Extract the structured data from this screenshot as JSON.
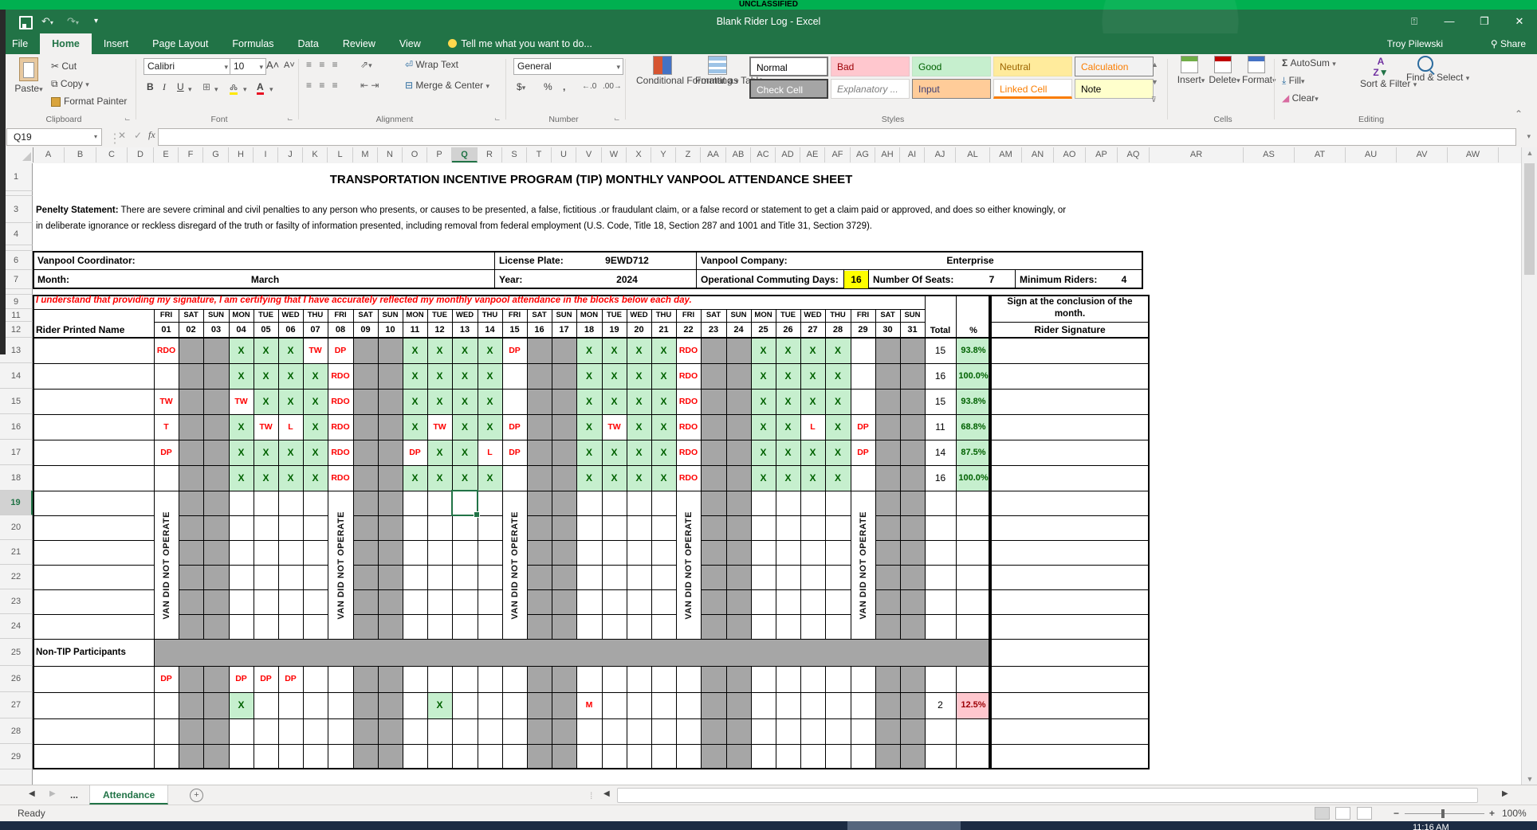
{
  "banner": {
    "text": "UNCLASSIFIED"
  },
  "title_bar": {
    "title": "Blank Rider Log - Excel",
    "user": "Troy Pilewski",
    "share_label": "Share"
  },
  "ribbon": {
    "tabs": [
      {
        "label": "File",
        "active": false
      },
      {
        "label": "Home",
        "active": true
      },
      {
        "label": "Insert",
        "active": false
      },
      {
        "label": "Page Layout",
        "active": false
      },
      {
        "label": "Formulas",
        "active": false
      },
      {
        "label": "Data",
        "active": false
      },
      {
        "label": "Review",
        "active": false
      },
      {
        "label": "View",
        "active": false
      }
    ],
    "tell_me": "Tell me what you want to do...",
    "groups": {
      "clipboard": {
        "label": "Clipboard",
        "paste": "Paste",
        "cut": "Cut",
        "copy": "Copy",
        "format_painter": "Format Painter"
      },
      "font": {
        "label": "Font",
        "family": "Calibri",
        "size": "10"
      },
      "alignment": {
        "label": "Alignment",
        "wrap_text": "Wrap Text",
        "merge_center": "Merge & Center"
      },
      "number": {
        "label": "Number",
        "format": "General"
      },
      "styles": {
        "label": "Styles",
        "conditional": "Conditional Formatting",
        "format_table": "Format as Table",
        "gallery": [
          {
            "label": "Normal",
            "fg": "#000000",
            "bg": "#ffffff",
            "border": "#7a7a7a",
            "italic": false
          },
          {
            "label": "Bad",
            "fg": "#9c0006",
            "bg": "#ffc7ce",
            "border": "#e8c3c9",
            "italic": false
          },
          {
            "label": "Good",
            "fg": "#006100",
            "bg": "#c6efce",
            "border": "#c0e4c5",
            "italic": false
          },
          {
            "label": "Neutral",
            "fg": "#9c6500",
            "bg": "#ffeb9c",
            "border": "#efe09a",
            "italic": false
          },
          {
            "label": "Calculation",
            "fg": "#fa7d00",
            "bg": "#f2f2f2",
            "border": "#7f7f7f",
            "italic": false
          },
          {
            "label": "Check Cell",
            "fg": "#ffffff",
            "bg": "#a5a5a5",
            "border": "#3f3f3f",
            "italic": false
          },
          {
            "label": "Explanatory ...",
            "fg": "#7f7f7f",
            "bg": "#ffffff",
            "border": "#d5d3d1",
            "italic": true
          },
          {
            "label": "Input",
            "fg": "#3f3f76",
            "bg": "#ffcc99",
            "border": "#7f7f7f",
            "italic": false
          },
          {
            "label": "Linked Cell",
            "fg": "#fa7d00",
            "bg": "#ffffff",
            "border": "#d5d3d1",
            "italic": false
          },
          {
            "label": "Note",
            "fg": "#000000",
            "bg": "#ffffcc",
            "border": "#b2b2b2",
            "italic": false
          }
        ]
      },
      "cells": {
        "label": "Cells",
        "buttons": [
          "Insert",
          "Delete",
          "Format"
        ]
      },
      "editing": {
        "label": "Editing",
        "autosum": "AutoSum",
        "fill": "Fill",
        "clear": "Clear",
        "sort": "Sort & Filter",
        "find": "Find & Select"
      }
    }
  },
  "formula_bar": {
    "name_box": "Q19",
    "fx_label": "fx",
    "value": ""
  },
  "sheet": {
    "title": "TRANSPORTATION INCENTIVE PROGRAM (TIP) MONTHLY VANPOOL ATTENDANCE SHEET",
    "penalty_bold": "Penelty Statement:",
    "penalty_line1": " There are severe criminal and civil penalties to any person who presents, or causes to be presented, a false, fictitious .or fraudulant claim, or a false record or statement to get a claim paid or approved, and does so either knowingly, or",
    "penalty_line2": "in deliberate ignorance or reckless disregard of the truth or fasilty of information presented, including removal from federal employment (U.S. Code, Title 18, Section 287 and 1001 and Title 31, Section 3729).",
    "info": {
      "coordinator_label": "Vanpool Coordinator:",
      "coordinator": "",
      "license_label": "License Plate:",
      "license": "9EWD712",
      "company_label": "Vanpool Company:",
      "company": "Enterprise",
      "month_label": "Month:",
      "month": "March",
      "year_label": "Year:",
      "year": "2024",
      "ocd_label": "Operational Commuting Days:",
      "ocd": "16",
      "seats_label": "Number Of Seats:",
      "seats": "7",
      "min_label": "Minimum Riders:",
      "min": "4"
    },
    "certification": "I understand that providing my signature, I am certifying that I have accurately reflected my monthly vanpool attendance in the blocks below each day.",
    "sign_note_line1": "Sign at the conclusion of the",
    "sign_note_line2": "month.",
    "rider_name_header": "Rider Printed Name",
    "rider_sig_header": "Rider Signature",
    "total_header": "Total",
    "pct_header": "%",
    "van_note": "VAN DID NOT OPERATE",
    "van_cols": [
      1,
      8,
      15,
      22,
      29
    ],
    "gray_days": [
      2,
      3,
      9,
      10,
      16,
      17,
      23,
      24,
      30,
      31
    ],
    "days": [
      {
        "d": "01",
        "w": "FRI"
      },
      {
        "d": "02",
        "w": "SAT"
      },
      {
        "d": "03",
        "w": "SUN"
      },
      {
        "d": "04",
        "w": "MON"
      },
      {
        "d": "05",
        "w": "TUE"
      },
      {
        "d": "06",
        "w": "WED"
      },
      {
        "d": "07",
        "w": "THU"
      },
      {
        "d": "08",
        "w": "FRI"
      },
      {
        "d": "09",
        "w": "SAT"
      },
      {
        "d": "10",
        "w": "SUN"
      },
      {
        "d": "11",
        "w": "MON"
      },
      {
        "d": "12",
        "w": "TUE"
      },
      {
        "d": "13",
        "w": "WED"
      },
      {
        "d": "14",
        "w": "THU"
      },
      {
        "d": "15",
        "w": "FRI"
      },
      {
        "d": "16",
        "w": "SAT"
      },
      {
        "d": "17",
        "w": "SUN"
      },
      {
        "d": "18",
        "w": "MON"
      },
      {
        "d": "19",
        "w": "TUE"
      },
      {
        "d": "20",
        "w": "WED"
      },
      {
        "d": "21",
        "w": "THU"
      },
      {
        "d": "22",
        "w": "FRI"
      },
      {
        "d": "23",
        "w": "SAT"
      },
      {
        "d": "24",
        "w": "SUN"
      },
      {
        "d": "25",
        "w": "MON"
      },
      {
        "d": "26",
        "w": "TUE"
      },
      {
        "d": "27",
        "w": "WED"
      },
      {
        "d": "28",
        "w": "THU"
      },
      {
        "d": "29",
        "w": "FRI"
      },
      {
        "d": "30",
        "w": "SAT"
      },
      {
        "d": "31",
        "w": "SUN"
      }
    ],
    "riders": [
      {
        "days": {
          "1": "RDO",
          "4": "X",
          "5": "X",
          "6": "X",
          "7": "TW",
          "8": "DP",
          "11": "X",
          "12": "X",
          "13": "X",
          "14": "X",
          "15": "DP",
          "18": "X",
          "19": "X",
          "20": "X",
          "21": "X",
          "22": "RDO",
          "25": "X",
          "26": "X",
          "27": "X",
          "28": "X"
        },
        "total": "15",
        "pct": "93.8%"
      },
      {
        "days": {
          "4": "X",
          "5": "X",
          "6": "X",
          "7": "X",
          "8": "RDO",
          "11": "X",
          "12": "X",
          "13": "X",
          "14": "X",
          "18": "X",
          "19": "X",
          "20": "X",
          "21": "X",
          "22": "RDO",
          "25": "X",
          "26": "X",
          "27": "X",
          "28": "X"
        },
        "total": "16",
        "pct": "100.0%"
      },
      {
        "days": {
          "1": "TW",
          "4": "TW",
          "5": "X",
          "6": "X",
          "7": "X",
          "8": "RDO",
          "11": "X",
          "12": "X",
          "13": "X",
          "14": "X",
          "18": "X",
          "19": "X",
          "20": "X",
          "21": "X",
          "22": "RDO",
          "25": "X",
          "26": "X",
          "27": "X",
          "28": "X"
        },
        "total": "15",
        "pct": "93.8%"
      },
      {
        "days": {
          "1": "T",
          "4": "X",
          "5": "TW",
          "6": "L",
          "7": "X",
          "8": "RDO",
          "11": "X",
          "12": "TW",
          "13": "X",
          "14": "X",
          "15": "DP",
          "18": "X",
          "19": "TW",
          "20": "X",
          "21": "X",
          "22": "RDO",
          "25": "X",
          "26": "X",
          "27": "L",
          "28": "X",
          "29": "DP"
        },
        "total": "11",
        "pct": "68.8%"
      },
      {
        "days": {
          "1": "DP",
          "4": "X",
          "5": "X",
          "6": "X",
          "7": "X",
          "8": "RDO",
          "11": "DP",
          "12": "X",
          "13": "X",
          "14": "L",
          "15": "DP",
          "18": "X",
          "19": "X",
          "20": "X",
          "21": "X",
          "22": "RDO",
          "25": "X",
          "26": "X",
          "27": "X",
          "28": "X",
          "29": "DP"
        },
        "total": "14",
        "pct": "87.5%"
      },
      {
        "days": {
          "4": "X",
          "5": "X",
          "6": "X",
          "7": "X",
          "8": "RDO",
          "11": "X",
          "12": "X",
          "13": "X",
          "14": "X",
          "18": "X",
          "19": "X",
          "20": "X",
          "21": "X",
          "22": "RDO",
          "25": "X",
          "26": "X",
          "27": "X",
          "28": "X"
        },
        "total": "16",
        "pct": "100.0%"
      }
    ],
    "non_tip_label": "Non-TIP Participants",
    "non_tip_rows": [
      {
        "days": {
          "1": "DP",
          "4": "DP",
          "5": "DP",
          "6": "DP"
        },
        "total": "",
        "pct": ""
      },
      {
        "days": {
          "4": "X",
          "12": "X",
          "18": "M"
        },
        "total": "2",
        "pct": "12.5%"
      }
    ],
    "col_letters": [
      "A",
      "B",
      "C",
      "D",
      "E",
      "F",
      "G",
      "H",
      "I",
      "J",
      "K",
      "L",
      "M",
      "N",
      "O",
      "P",
      "Q",
      "R",
      "S",
      "T",
      "U",
      "V",
      "W",
      "X",
      "Y",
      "Z",
      "AA",
      "AB",
      "AC",
      "AD",
      "AE",
      "AF",
      "AG",
      "AH",
      "AI",
      "AJ",
      "AL",
      "AM",
      "AN",
      "AO",
      "AP",
      "AQ",
      "AR",
      "AS",
      "AT",
      "AU",
      "AV",
      "AW"
    ],
    "row_numbers": [
      1,
      2,
      3,
      4,
      5,
      6,
      7,
      8,
      9,
      11,
      12,
      13,
      14,
      15,
      16,
      17,
      18,
      19,
      20,
      21,
      22,
      23,
      24,
      25,
      26,
      27,
      28,
      29
    ],
    "selected_cell": {
      "col": "Q",
      "row": 19
    }
  },
  "sheet_tabs": {
    "overflow": "...",
    "tabs": [
      {
        "label": "Attendance",
        "active": true
      }
    ]
  },
  "status_bar": {
    "status": "Ready",
    "zoom_level": "100%"
  },
  "taskbar": {
    "time": "11:16 AM"
  },
  "colors": {
    "accent_green": "#217346",
    "banner_green": "#00b050",
    "good_bg": "#c6efce",
    "good_fg": "#006100",
    "bad_bg": "#ffc7ce",
    "bad_fg": "#9c0006",
    "gray_cell": "#a6a6a6",
    "highlight_yellow": "#ffff00",
    "red_text": "#fe0000"
  }
}
